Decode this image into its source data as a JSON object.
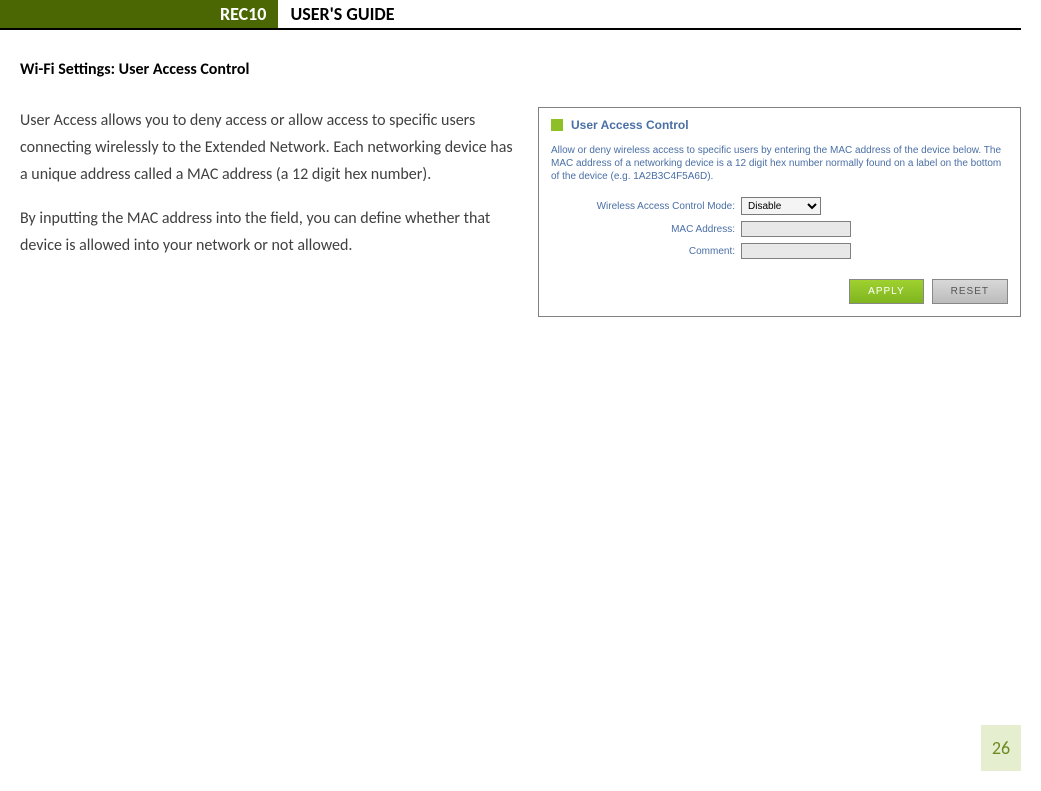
{
  "header": {
    "badge": "REC10",
    "title": "USER'S GUIDE"
  },
  "section_heading": "Wi-Fi Settings: User Access Control",
  "paragraphs": [
    "User Access allows you to deny access or allow access to specific users connecting wirelessly to the Extended Network.  Each networking device has a unique address called a MAC address (a 12 digit hex number).",
    "By inputting the MAC address into the field, you can define whether that device is allowed into your network or not allowed."
  ],
  "panel": {
    "title": "User Access Control",
    "description": "Allow or deny wireless access to specific users by entering the MAC address of the device below. The MAC address of a networking device is a 12 digit hex number normally found on a label on the bottom of the device (e.g. 1A2B3C4F5A6D).",
    "fields": {
      "mode_label": "Wireless Access Control Mode:",
      "mode_value": "Disable",
      "mac_label": "MAC Address:",
      "mac_value": "",
      "comment_label": "Comment:",
      "comment_value": ""
    },
    "buttons": {
      "apply": "APPLY",
      "reset": "RESET"
    },
    "colors": {
      "accent_square": "#8fbf26",
      "link_text": "#4a6fa5",
      "apply_bg": "#8fbf26",
      "reset_bg": "#c8c8c8"
    }
  },
  "page_number": "26"
}
